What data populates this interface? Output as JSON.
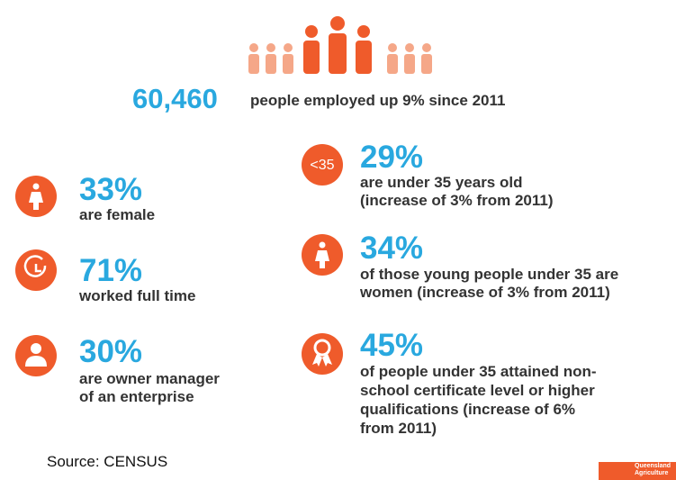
{
  "headline": {
    "value": "60,460",
    "text": "people employed up 9% since 2011"
  },
  "left": [
    {
      "percent": "33%",
      "lines": [
        "are female"
      ]
    },
    {
      "percent": "71%",
      "lines": [
        "worked full time"
      ]
    },
    {
      "percent": "30%",
      "lines": [
        "are owner manager",
        "of an enterprise"
      ]
    }
  ],
  "right": [
    {
      "icon_label": "<35",
      "percent": "29%",
      "lines": [
        "are under 35 years old",
        "(increase of 3% from 2011)"
      ]
    },
    {
      "percent": "34%",
      "lines": [
        "of those young people under 35 are",
        "women (increase of 3% from 2011)"
      ]
    },
    {
      "percent": "45%",
      "lines": [
        "of people under 35 attained non-",
        "school certificate level or higher",
        "qualifications (increase of 6%",
        "from 2011)"
      ]
    }
  ],
  "source": "Source: CENSUS",
  "logo": {
    "lines": [
      "Queensland",
      "Agriculture"
    ]
  }
}
